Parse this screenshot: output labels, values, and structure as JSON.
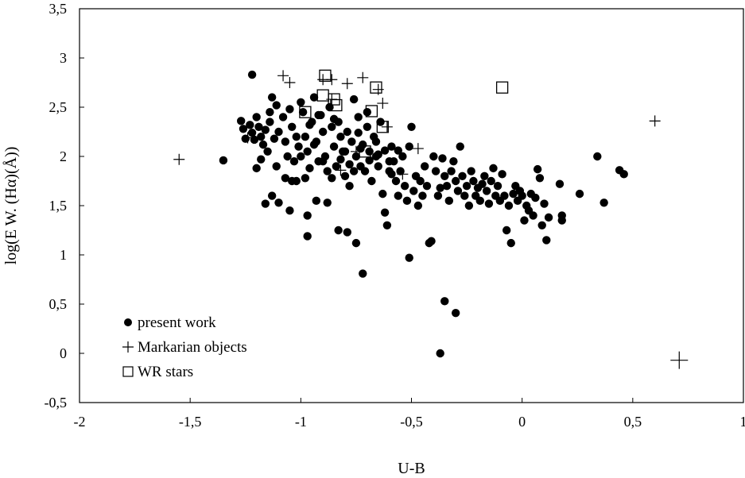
{
  "chart_data": {
    "type": "scatter",
    "title": "",
    "xlabel": "U-B",
    "ylabel": "log(E W. (Hα)(Å))",
    "xlim": [
      -2,
      1
    ],
    "ylim": [
      -0.5,
      3.5
    ],
    "xticks": [
      -2,
      -1.5,
      -1,
      -0.5,
      0,
      0.5,
      1
    ],
    "yticks": [
      -0.5,
      0,
      0.5,
      1,
      1.5,
      2,
      2.5,
      3,
      3.5
    ],
    "xtick_labels": [
      "-2",
      "-1,5",
      "-1",
      "-0,5",
      "0",
      "0,5",
      "1"
    ],
    "ytick_labels": [
      "-0,5",
      "0",
      "0,5",
      "1",
      "1,5",
      "2",
      "2,5",
      "3",
      "3,5"
    ],
    "grid": false,
    "legend_position": "bottom-left",
    "series": [
      {
        "name": "present work",
        "marker": "filled-circle",
        "color": "#000000",
        "points": [
          [
            -1.22,
            2.83
          ],
          [
            -1.35,
            1.96
          ],
          [
            -1.27,
            2.36
          ],
          [
            -1.26,
            2.28
          ],
          [
            -1.25,
            2.18
          ],
          [
            -1.23,
            2.32
          ],
          [
            -1.22,
            2.24
          ],
          [
            -1.21,
            2.17
          ],
          [
            -1.2,
            2.4
          ],
          [
            -1.19,
            2.3
          ],
          [
            -1.18,
            2.2
          ],
          [
            -1.17,
            2.12
          ],
          [
            -1.16,
            2.27
          ],
          [
            -1.15,
            2.05
          ],
          [
            -1.14,
            2.35
          ],
          [
            -1.13,
            2.6
          ],
          [
            -1.12,
            2.18
          ],
          [
            -1.11,
            1.9
          ],
          [
            -1.2,
            1.88
          ],
          [
            -1.18,
            1.97
          ],
          [
            -1.16,
            1.52
          ],
          [
            -1.13,
            1.6
          ],
          [
            -1.1,
            2.25
          ],
          [
            -1.08,
            2.4
          ],
          [
            -1.07,
            2.15
          ],
          [
            -1.06,
            2.0
          ],
          [
            -1.05,
            2.48
          ],
          [
            -1.04,
            2.3
          ],
          [
            -1.03,
            1.95
          ],
          [
            -1.02,
            1.75
          ],
          [
            -1.01,
            2.1
          ],
          [
            -1.0,
            2.55
          ],
          [
            -0.99,
            2.45
          ],
          [
            -0.98,
            2.2
          ],
          [
            -0.97,
            2.05
          ],
          [
            -0.96,
            1.88
          ],
          [
            -0.95,
            2.35
          ],
          [
            -0.94,
            2.6
          ],
          [
            -0.93,
            2.15
          ],
          [
            -0.92,
            1.95
          ],
          [
            -0.91,
            2.42
          ],
          [
            -0.9,
            2.25
          ],
          [
            -0.89,
            2.0
          ],
          [
            -0.88,
            1.85
          ],
          [
            -0.87,
            2.5
          ],
          [
            -0.86,
            2.3
          ],
          [
            -0.85,
            2.1
          ],
          [
            -0.84,
            1.9
          ],
          [
            -0.83,
            2.35
          ],
          [
            -0.82,
            2.2
          ],
          [
            -0.81,
            2.05
          ],
          [
            -0.8,
            1.8
          ],
          [
            -0.79,
            2.25
          ],
          [
            -0.78,
            1.7
          ],
          [
            -0.77,
            2.15
          ],
          [
            -0.76,
            2.58
          ],
          [
            -0.75,
            2.0
          ],
          [
            -0.74,
            2.4
          ],
          [
            -0.73,
            1.9
          ],
          [
            -0.72,
            2.12
          ],
          [
            -0.71,
            1.85
          ],
          [
            -0.7,
            2.3
          ],
          [
            -0.69,
            2.05
          ],
          [
            -0.68,
            1.75
          ],
          [
            -0.67,
            2.2
          ],
          [
            -0.66,
            2.0
          ],
          [
            -0.65,
            1.9
          ],
          [
            -0.64,
            2.35
          ],
          [
            -0.63,
            1.62
          ],
          [
            -0.62,
            1.43
          ],
          [
            -0.61,
            1.3
          ],
          [
            -0.6,
            1.85
          ],
          [
            -0.59,
            2.1
          ],
          [
            -0.58,
            1.95
          ],
          [
            -0.57,
            1.75
          ],
          [
            -0.56,
            1.6
          ],
          [
            -0.55,
            1.85
          ],
          [
            -0.54,
            2.0
          ],
          [
            -0.53,
            1.7
          ],
          [
            -0.52,
            1.55
          ],
          [
            -0.51,
            2.1
          ],
          [
            -0.5,
            2.3
          ],
          [
            -0.49,
            1.65
          ],
          [
            -0.48,
            1.8
          ],
          [
            -0.47,
            1.5
          ],
          [
            -0.46,
            1.75
          ],
          [
            -0.45,
            1.6
          ],
          [
            -0.44,
            1.9
          ],
          [
            -0.43,
            1.7
          ],
          [
            -0.42,
            1.12
          ],
          [
            -0.41,
            1.14
          ],
          [
            -0.4,
            2.0
          ],
          [
            -0.39,
            1.85
          ],
          [
            -0.38,
            1.6
          ],
          [
            -0.37,
            1.68
          ],
          [
            -0.36,
            1.98
          ],
          [
            -0.35,
            1.8
          ],
          [
            -0.34,
            1.7
          ],
          [
            -0.33,
            1.55
          ],
          [
            -0.32,
            1.85
          ],
          [
            -0.31,
            1.95
          ],
          [
            -0.3,
            1.75
          ],
          [
            -0.29,
            1.65
          ],
          [
            -0.28,
            2.1
          ],
          [
            -0.27,
            1.8
          ],
          [
            -0.26,
            1.6
          ],
          [
            -0.25,
            1.7
          ],
          [
            -0.24,
            1.5
          ],
          [
            -0.23,
            1.85
          ],
          [
            -0.22,
            1.75
          ],
          [
            -0.21,
            1.6
          ],
          [
            -0.2,
            1.68
          ],
          [
            -0.19,
            1.55
          ],
          [
            -0.18,
            1.72
          ],
          [
            -0.17,
            1.8
          ],
          [
            -0.16,
            1.65
          ],
          [
            -0.15,
            1.52
          ],
          [
            -0.14,
            1.75
          ],
          [
            -0.13,
            1.88
          ],
          [
            -0.12,
            1.6
          ],
          [
            -0.11,
            1.7
          ],
          [
            -0.1,
            1.55
          ],
          [
            -0.09,
            1.82
          ],
          [
            -0.08,
            1.6
          ],
          [
            -0.07,
            1.25
          ],
          [
            -0.06,
            1.5
          ],
          [
            -0.05,
            1.12
          ],
          [
            -0.04,
            1.62
          ],
          [
            -0.03,
            1.7
          ],
          [
            -0.02,
            1.55
          ],
          [
            -0.01,
            1.65
          ],
          [
            0.0,
            1.6
          ],
          [
            0.01,
            1.35
          ],
          [
            0.02,
            1.5
          ],
          [
            0.03,
            1.45
          ],
          [
            0.04,
            1.62
          ],
          [
            0.05,
            1.4
          ],
          [
            0.06,
            1.58
          ],
          [
            0.07,
            1.87
          ],
          [
            0.08,
            1.78
          ],
          [
            0.09,
            1.3
          ],
          [
            0.1,
            1.52
          ],
          [
            0.11,
            1.15
          ],
          [
            0.12,
            1.38
          ],
          [
            0.17,
            1.72
          ],
          [
            0.18,
            1.4
          ],
          [
            0.18,
            1.35
          ],
          [
            0.26,
            1.62
          ],
          [
            0.34,
            2.0
          ],
          [
            0.37,
            1.53
          ],
          [
            0.44,
            1.86
          ],
          [
            0.46,
            1.82
          ],
          [
            -0.35,
            0.53
          ],
          [
            -0.3,
            0.41
          ],
          [
            -0.37,
            0.0
          ],
          [
            -0.72,
            0.81
          ],
          [
            -0.51,
            0.97
          ],
          [
            -0.75,
            1.12
          ],
          [
            -0.97,
            1.19
          ],
          [
            -0.79,
            1.23
          ],
          [
            -0.83,
            1.25
          ],
          [
            -0.97,
            1.4
          ],
          [
            -1.05,
            1.45
          ],
          [
            -1.1,
            1.53
          ],
          [
            -0.93,
            1.55
          ],
          [
            -0.88,
            1.53
          ],
          [
            -0.94,
            2.12
          ],
          [
            -0.96,
            2.32
          ],
          [
            -0.92,
            2.42
          ],
          [
            -0.85,
            2.38
          ],
          [
            -0.8,
            2.05
          ],
          [
            -0.78,
            1.92
          ],
          [
            -0.74,
            2.24
          ],
          [
            -0.7,
            2.45
          ],
          [
            -0.66,
            2.15
          ],
          [
            -0.62,
            2.06
          ],
          [
            -0.59,
            1.82
          ],
          [
            -1.07,
            1.78
          ],
          [
            -1.04,
            1.75
          ],
          [
            -1.14,
            2.45
          ],
          [
            -1.11,
            2.52
          ],
          [
            -1.02,
            2.2
          ],
          [
            -1.0,
            2.0
          ],
          [
            -0.98,
            1.78
          ],
          [
            -0.9,
            1.95
          ],
          [
            -0.86,
            1.78
          ],
          [
            -0.82,
            1.97
          ],
          [
            -0.76,
            1.85
          ],
          [
            -0.73,
            2.08
          ],
          [
            -0.69,
            1.96
          ],
          [
            -0.65,
            2.02
          ],
          [
            -0.6,
            1.95
          ],
          [
            -0.56,
            2.06
          ]
        ]
      },
      {
        "name": "Markarian objects",
        "marker": "plus",
        "color": "#000000",
        "points": [
          [
            -1.55,
            1.97
          ],
          [
            -1.08,
            2.82
          ],
          [
            -1.05,
            2.75
          ],
          [
            -0.9,
            2.78
          ],
          [
            -0.86,
            2.78
          ],
          [
            -0.79,
            2.74
          ],
          [
            -0.72,
            2.8
          ],
          [
            -0.65,
            2.68
          ],
          [
            -0.63,
            2.54
          ],
          [
            -0.61,
            2.3
          ],
          [
            -0.75,
            2.05
          ],
          [
            -0.47,
            2.08
          ],
          [
            -0.54,
            1.82
          ],
          [
            -0.82,
            1.86
          ],
          [
            -0.86,
            2.58
          ],
          [
            -1.24,
            2.19
          ],
          [
            0.6,
            2.36
          ],
          [
            0.71,
            -0.07
          ]
        ]
      },
      {
        "name": "WR stars",
        "marker": "open-square",
        "color": "#000000",
        "points": [
          [
            -0.89,
            2.82
          ],
          [
            -0.66,
            2.7
          ],
          [
            -0.09,
            2.7
          ],
          [
            -0.9,
            2.62
          ],
          [
            -0.85,
            2.58
          ],
          [
            -0.84,
            2.52
          ],
          [
            -0.68,
            2.46
          ],
          [
            -0.63,
            2.3
          ],
          [
            -0.98,
            2.45
          ],
          [
            -0.71,
            2.05
          ]
        ]
      }
    ]
  }
}
